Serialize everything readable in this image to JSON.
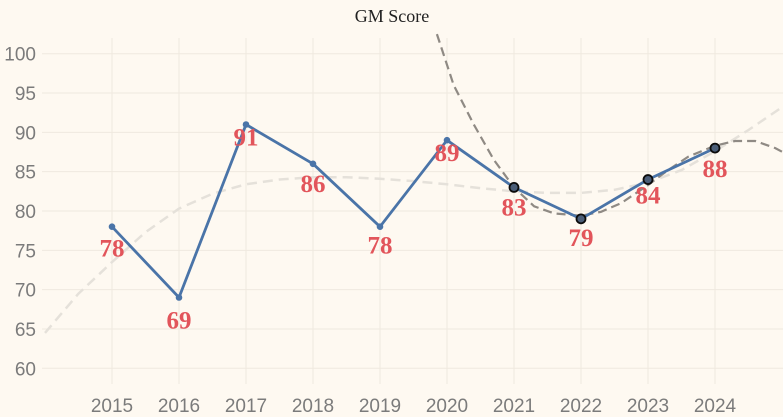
{
  "chart_data": {
    "type": "line",
    "title": "GM Score",
    "xlabel": "",
    "ylabel": "",
    "x": [
      "2015",
      "2016",
      "2017",
      "2018",
      "2019",
      "2020",
      "2021",
      "2022",
      "2023",
      "2024"
    ],
    "series": [
      {
        "values": [
          78,
          69,
          91,
          86,
          78,
          89,
          83,
          79,
          84,
          88
        ],
        "color": "#4a74a8"
      }
    ],
    "highlighted_points": [
      "2021",
      "2022",
      "2023",
      "2024"
    ],
    "data_labels": [
      "78",
      "69",
      "91",
      "86",
      "78",
      "89",
      "83",
      "79",
      "84",
      "88"
    ],
    "yticks": [
      "60",
      "65",
      "70",
      "75",
      "80",
      "85",
      "90",
      "95",
      "100"
    ],
    "ylim": [
      58,
      102
    ],
    "grid": true,
    "trendlines": [
      {
        "style": "dashed-light",
        "color": "#e5e1da"
      },
      {
        "style": "dashed-dark",
        "color": "#8f8a84"
      }
    ],
    "label_color": "#e2555b"
  }
}
